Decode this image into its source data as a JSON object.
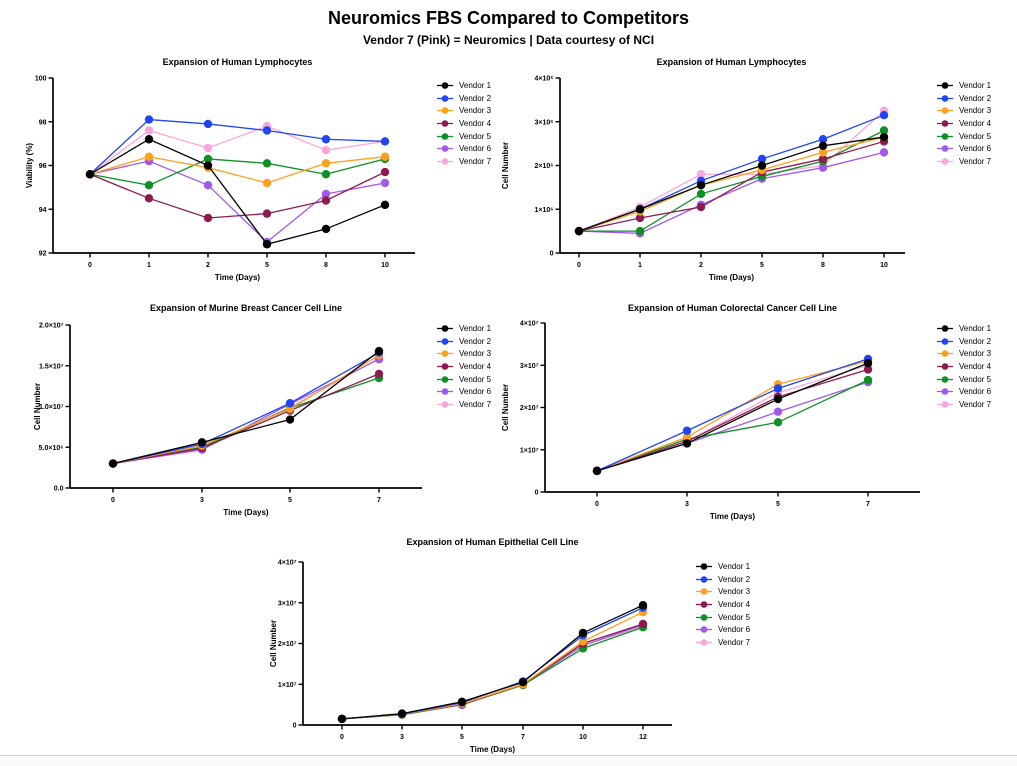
{
  "page": {
    "title": "Neuromics FBS Compared to Competitors",
    "subtitle": "Vendor 7 (Pink) = Neuromics | Data courtesy of NCI"
  },
  "vendors": [
    {
      "name": "Vendor 1",
      "color": "#000000"
    },
    {
      "name": "Vendor 2",
      "color": "#2145F0"
    },
    {
      "name": "Vendor 3",
      "color": "#FF9F1E"
    },
    {
      "name": "Vendor 4",
      "color": "#8D1B50"
    },
    {
      "name": "Vendor 5",
      "color": "#0D9125"
    },
    {
      "name": "Vendor 6",
      "color": "#A159EC"
    },
    {
      "name": "Vendor 7",
      "color": "#F8A7DC"
    }
  ],
  "chart_data": [
    {
      "type": "line",
      "title": "Expansion of Human Lymphocytes",
      "xlabel": "Time (Days)",
      "ylabel": "Viability (%)",
      "x_categories": [
        "0",
        "1",
        "2",
        "5",
        "8",
        "10"
      ],
      "ylim": [
        92,
        100
      ],
      "ytick_values": [
        92,
        94,
        96,
        98,
        100
      ],
      "ytick_labels": [
        "92",
        "94",
        "96",
        "98",
        "100"
      ],
      "grid": "off",
      "legend_position": "right",
      "series": [
        {
          "name": "Vendor 1",
          "color": "#000000",
          "values": [
            95.6,
            97.2,
            96.0,
            92.4,
            93.1,
            94.2
          ]
        },
        {
          "name": "Vendor 2",
          "color": "#2145F0",
          "values": [
            95.6,
            98.1,
            97.9,
            97.6,
            97.2,
            97.1
          ]
        },
        {
          "name": "Vendor 3",
          "color": "#FF9F1E",
          "values": [
            95.6,
            96.4,
            95.9,
            95.2,
            96.1,
            96.4
          ]
        },
        {
          "name": "Vendor 4",
          "color": "#8D1B50",
          "values": [
            95.6,
            94.5,
            93.6,
            93.8,
            94.4,
            95.7
          ]
        },
        {
          "name": "Vendor 5",
          "color": "#0D9125",
          "values": [
            95.6,
            95.1,
            96.3,
            96.1,
            95.6,
            96.3
          ]
        },
        {
          "name": "Vendor 6",
          "color": "#A159EC",
          "values": [
            95.6,
            96.2,
            95.1,
            92.5,
            94.7,
            95.2
          ]
        },
        {
          "name": "Vendor 7",
          "color": "#F8A7DC",
          "values": [
            95.6,
            97.6,
            96.8,
            97.8,
            96.7,
            97.1
          ]
        }
      ]
    },
    {
      "type": "line",
      "title": "Expansion of Human Lymphocytes",
      "xlabel": "Time (Days)",
      "ylabel": "Cell Number",
      "x_categories": [
        "0",
        "1",
        "2",
        "5",
        "8",
        "10"
      ],
      "ylim": [
        0,
        4000000
      ],
      "ytick_values": [
        0,
        1000000,
        2000000,
        3000000,
        4000000
      ],
      "ytick_labels": [
        "0",
        "1×10⁶",
        "2×10⁶",
        "3×10⁶",
        "4×10⁶"
      ],
      "grid": "off",
      "legend_position": "right",
      "series": [
        {
          "name": "Vendor 1",
          "color": "#000000",
          "values": [
            500000,
            1000000,
            1550000,
            2000000,
            2450000,
            2650000
          ]
        },
        {
          "name": "Vendor 2",
          "color": "#2145F0",
          "values": [
            500000,
            1000000,
            1650000,
            2150000,
            2600000,
            3150000
          ]
        },
        {
          "name": "Vendor 3",
          "color": "#FF9F1E",
          "values": [
            500000,
            950000,
            1550000,
            1900000,
            2300000,
            2650000
          ]
        },
        {
          "name": "Vendor 4",
          "color": "#8D1B50",
          "values": [
            500000,
            800000,
            1050000,
            1850000,
            2150000,
            2550000
          ]
        },
        {
          "name": "Vendor 5",
          "color": "#0D9125",
          "values": [
            500000,
            500000,
            1350000,
            1750000,
            2100000,
            2800000
          ]
        },
        {
          "name": "Vendor 6",
          "color": "#A159EC",
          "values": [
            500000,
            450000,
            1100000,
            1700000,
            1950000,
            2300000
          ]
        },
        {
          "name": "Vendor 7",
          "color": "#F8A7DC",
          "values": [
            500000,
            1050000,
            1800000,
            1800000,
            2000000,
            3250000
          ]
        }
      ]
    },
    {
      "type": "line",
      "title": "Expansion of Murine Breast Cancer Cell Line",
      "xlabel": "Time (Days)",
      "ylabel": "Cell Number",
      "x_categories": [
        "0",
        "3",
        "5",
        "7"
      ],
      "ylim": [
        0,
        20000000
      ],
      "ytick_values": [
        0,
        5000000,
        10000000,
        15000000,
        20000000
      ],
      "ytick_labels": [
        "0.0",
        "5.0×10⁶",
        "1.0×10⁷",
        "1.5×10⁷",
        "2.0×10⁷"
      ],
      "grid": "off",
      "legend_position": "right",
      "series": [
        {
          "name": "Vendor 1",
          "color": "#000000",
          "values": [
            3000000,
            5600000,
            8400000,
            16800000
          ]
        },
        {
          "name": "Vendor 2",
          "color": "#2145F0",
          "values": [
            3000000,
            5400000,
            10400000,
            16600000
          ]
        },
        {
          "name": "Vendor 3",
          "color": "#FF9F1E",
          "values": [
            3000000,
            5200000,
            9700000,
            16300000
          ]
        },
        {
          "name": "Vendor 4",
          "color": "#8D1B50",
          "values": [
            3000000,
            4900000,
            9500000,
            14000000
          ]
        },
        {
          "name": "Vendor 5",
          "color": "#0D9125",
          "values": [
            3000000,
            5000000,
            9800000,
            13500000
          ]
        },
        {
          "name": "Vendor 6",
          "color": "#A159EC",
          "values": [
            3000000,
            4700000,
            10300000,
            15800000
          ]
        },
        {
          "name": "Vendor 7",
          "color": "#F8A7DC",
          "values": [
            3000000,
            4800000,
            9900000,
            15900000
          ]
        }
      ]
    },
    {
      "type": "line",
      "title": "Expansion of Human Colorectal Cancer Cell Line",
      "xlabel": "Time (Days)",
      "ylabel": "Cell Number",
      "x_categories": [
        "0",
        "3",
        "5",
        "7"
      ],
      "ylim": [
        0,
        40000000
      ],
      "ytick_values": [
        0,
        10000000,
        20000000,
        30000000,
        40000000
      ],
      "ytick_labels": [
        "0",
        "1×10⁷",
        "2×10⁷",
        "3×10⁷",
        "4×10⁷"
      ],
      "grid": "off",
      "legend_position": "right",
      "series": [
        {
          "name": "Vendor 1",
          "color": "#000000",
          "values": [
            5000000,
            11500000,
            22000000,
            30500000
          ]
        },
        {
          "name": "Vendor 2",
          "color": "#2145F0",
          "values": [
            5000000,
            14500000,
            24500000,
            31500000
          ]
        },
        {
          "name": "Vendor 3",
          "color": "#FF9F1E",
          "values": [
            5000000,
            13000000,
            25500000,
            31000000
          ]
        },
        {
          "name": "Vendor 4",
          "color": "#8D1B50",
          "values": [
            5000000,
            12000000,
            22500000,
            29000000
          ]
        },
        {
          "name": "Vendor 5",
          "color": "#0D9125",
          "values": [
            5000000,
            12500000,
            16500000,
            26500000
          ]
        },
        {
          "name": "Vendor 6",
          "color": "#A159EC",
          "values": [
            5000000,
            11500000,
            19000000,
            26000000
          ]
        },
        {
          "name": "Vendor 7",
          "color": "#F8A7DC",
          "values": [
            5000000,
            12000000,
            23500000,
            30000000
          ]
        }
      ]
    },
    {
      "type": "line",
      "title": "Expansion of Human Epithelial Cell Line",
      "xlabel": "Time (Days)",
      "ylabel": "Cell Number",
      "x_categories": [
        "0",
        "3",
        "5",
        "7",
        "10",
        "12"
      ],
      "ylim": [
        0,
        40000000
      ],
      "ytick_values": [
        0,
        10000000,
        20000000,
        30000000,
        40000000
      ],
      "ytick_labels": [
        "0",
        "1×10⁷",
        "2×10⁷",
        "3×10⁷",
        "4×10⁷"
      ],
      "grid": "off",
      "legend_position": "right",
      "series": [
        {
          "name": "Vendor 1",
          "color": "#000000",
          "values": [
            1500000,
            2800000,
            5700000,
            10500000,
            22600000,
            29400000
          ]
        },
        {
          "name": "Vendor 2",
          "color": "#2145F0",
          "values": [
            1500000,
            2700000,
            5500000,
            10700000,
            22000000,
            28800000
          ]
        },
        {
          "name": "Vendor 3",
          "color": "#FF9F1E",
          "values": [
            1500000,
            2600000,
            5200000,
            10000000,
            20500000,
            27700000
          ]
        },
        {
          "name": "Vendor 4",
          "color": "#8D1B50",
          "values": [
            1500000,
            2600000,
            5000000,
            10000000,
            20000000,
            24800000
          ]
        },
        {
          "name": "Vendor 5",
          "color": "#0D9125",
          "values": [
            1500000,
            2500000,
            5000000,
            9800000,
            18800000,
            24000000
          ]
        },
        {
          "name": "Vendor 6",
          "color": "#A159EC",
          "values": [
            1500000,
            2600000,
            5000000,
            10000000,
            19500000,
            24600000
          ]
        },
        {
          "name": "Vendor 7",
          "color": "#F8A7DC",
          "values": [
            1500000,
            2600000,
            5100000,
            10000000,
            19500000,
            24200000
          ]
        }
      ]
    }
  ]
}
